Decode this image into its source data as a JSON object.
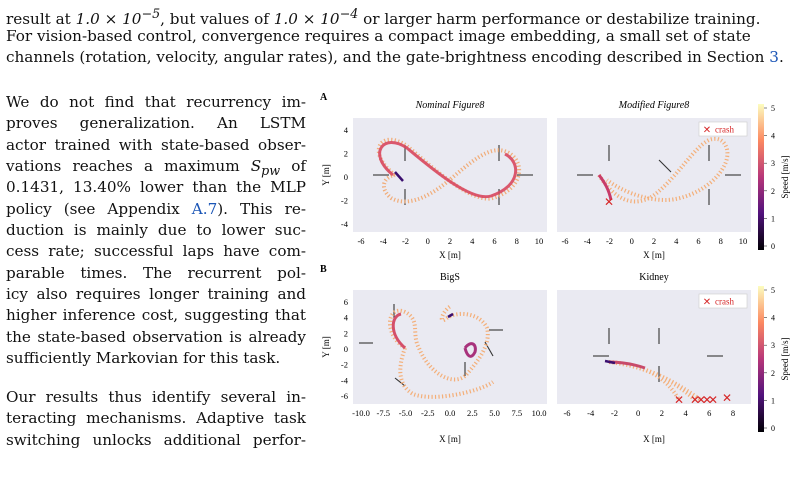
{
  "paper": {
    "top_lines": [
      "result at 1.0 × 10⁻⁵, but values of 1.0 × 10⁻⁴ or larger harm performance or destabilize training.",
      "For vision-based control, convergence requires a compact image embedding, a small set of state",
      "channels (rotation, velocity, angular rates), and the gate-brightness encoding described in Section 3."
    ],
    "para1_lines": [
      "We do not find that recurrency im-",
      "proves generalization.   An LSTM",
      "actor trained with state-based obser-",
      "vations reaches a maximum S_pw of",
      "0.1431, 13.40% lower than the MLP",
      "policy (see Appendix A.7). This re-",
      "duction is mainly due to lower suc-",
      "cess rate; successful laps have com-",
      "parable times.   The recurrent pol-",
      "icy also requires longer training and",
      "higher inference cost, suggesting that",
      "the state-based observation is already",
      "sufficiently Markovian for this task."
    ],
    "para2_lines": [
      "Our results thus identify several in-",
      "teracting mechanisms. Adaptive task",
      "switching unlocks additional perfor-"
    ]
  },
  "figure": {
    "panel_letters": [
      "A",
      "B"
    ],
    "colorbar": {
      "label": "Speed  [m/s]",
      "ticks": [
        "5",
        "4",
        "3",
        "2",
        "1",
        "0"
      ]
    },
    "legend_label": "crash",
    "ylabel": "Y [m]",
    "xlabel": "X [m]",
    "plots": [
      {
        "title": "Nominal Figure8",
        "xticks": [
          "-6",
          "-4",
          "-2",
          "0",
          "2",
          "4",
          "6",
          "8",
          "10"
        ],
        "yticks": [
          "4",
          "2",
          "0",
          "-2",
          "-4"
        ],
        "show_legend": false,
        "crash_count": 0
      },
      {
        "title": "Modified Figure8",
        "xticks": [
          "-6",
          "-4",
          "-2",
          "0",
          "2",
          "4",
          "6",
          "8",
          "10"
        ],
        "yticks": [],
        "show_legend": true,
        "crash_count": 1
      },
      {
        "title": "BigS",
        "xticks": [
          "-10.0",
          "-7.5",
          "-5.0",
          "-2.5",
          "0.0",
          "2.5",
          "5.0",
          "7.5",
          "10.0"
        ],
        "yticks": [
          "6",
          "4",
          "2",
          "0",
          "-2",
          "-4",
          "-6"
        ],
        "show_legend": false,
        "crash_count": 0
      },
      {
        "title": "Kidney",
        "xticks": [
          "-6",
          "-4",
          "-2",
          "0",
          "2",
          "4",
          "6",
          "8"
        ],
        "yticks": [],
        "show_legend": true,
        "crash_count": 6
      }
    ]
  }
}
